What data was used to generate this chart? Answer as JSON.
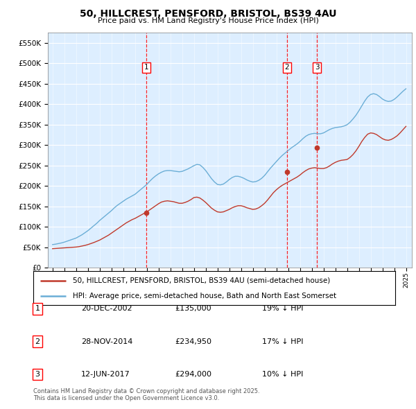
{
  "title": "50, HILLCREST, PENSFORD, BRISTOL, BS39 4AU",
  "subtitle": "Price paid vs. HM Land Registry's House Price Index (HPI)",
  "legend_line1": "50, HILLCREST, PENSFORD, BRISTOL, BS39 4AU (semi-detached house)",
  "legend_line2": "HPI: Average price, semi-detached house, Bath and North East Somerset",
  "footer": "Contains HM Land Registry data © Crown copyright and database right 2025.\nThis data is licensed under the Open Government Licence v3.0.",
  "sale_dates": [
    "20-DEC-2002",
    "28-NOV-2014",
    "12-JUN-2017"
  ],
  "sale_prices": [
    135000,
    234950,
    294000
  ],
  "sale_labels": [
    "1",
    "2",
    "3"
  ],
  "sale_hpi_pct": [
    "19% ↓ HPI",
    "17% ↓ HPI",
    "10% ↓ HPI"
  ],
  "hpi_color": "#6baed6",
  "price_color": "#c0392b",
  "background_color": "#ddeeff",
  "ylim": [
    0,
    575000
  ],
  "yticks": [
    0,
    50000,
    100000,
    150000,
    200000,
    250000,
    300000,
    350000,
    400000,
    450000,
    500000,
    550000
  ],
  "xlim_start": 1994.6,
  "xlim_end": 2025.5,
  "hpi_x": [
    1995.0,
    1995.25,
    1995.5,
    1995.75,
    1996.0,
    1996.25,
    1996.5,
    1996.75,
    1997.0,
    1997.25,
    1997.5,
    1997.75,
    1998.0,
    1998.25,
    1998.5,
    1998.75,
    1999.0,
    1999.25,
    1999.5,
    1999.75,
    2000.0,
    2000.25,
    2000.5,
    2000.75,
    2001.0,
    2001.25,
    2001.5,
    2001.75,
    2002.0,
    2002.25,
    2002.5,
    2002.75,
    2003.0,
    2003.25,
    2003.5,
    2003.75,
    2004.0,
    2004.25,
    2004.5,
    2004.75,
    2005.0,
    2005.25,
    2005.5,
    2005.75,
    2006.0,
    2006.25,
    2006.5,
    2006.75,
    2007.0,
    2007.25,
    2007.5,
    2007.75,
    2008.0,
    2008.25,
    2008.5,
    2008.75,
    2009.0,
    2009.25,
    2009.5,
    2009.75,
    2010.0,
    2010.25,
    2010.5,
    2010.75,
    2011.0,
    2011.25,
    2011.5,
    2011.75,
    2012.0,
    2012.25,
    2012.5,
    2012.75,
    2013.0,
    2013.25,
    2013.5,
    2013.75,
    2014.0,
    2014.25,
    2014.5,
    2014.75,
    2015.0,
    2015.25,
    2015.5,
    2015.75,
    2016.0,
    2016.25,
    2016.5,
    2016.75,
    2017.0,
    2017.25,
    2017.5,
    2017.75,
    2018.0,
    2018.25,
    2018.5,
    2018.75,
    2019.0,
    2019.25,
    2019.5,
    2019.75,
    2020.0,
    2020.25,
    2020.5,
    2020.75,
    2021.0,
    2021.25,
    2021.5,
    2021.75,
    2022.0,
    2022.25,
    2022.5,
    2022.75,
    2023.0,
    2023.25,
    2023.5,
    2023.75,
    2024.0,
    2024.25,
    2024.5,
    2024.75,
    2025.0
  ],
  "hpi_y": [
    57000,
    58000,
    59500,
    61000,
    63000,
    65500,
    68000,
    70500,
    73000,
    77000,
    81000,
    86000,
    91000,
    97000,
    103000,
    109000,
    116000,
    122000,
    128000,
    134000,
    140000,
    147000,
    153000,
    158000,
    163000,
    168000,
    172000,
    176000,
    180000,
    186000,
    192000,
    198000,
    204000,
    212000,
    219000,
    225000,
    230000,
    234000,
    237000,
    238000,
    238000,
    237000,
    236000,
    235000,
    236000,
    239000,
    242000,
    246000,
    250000,
    253000,
    252000,
    246000,
    238000,
    228000,
    218000,
    210000,
    204000,
    203000,
    205000,
    210000,
    216000,
    221000,
    224000,
    224000,
    222000,
    219000,
    215000,
    212000,
    210000,
    211000,
    214000,
    219000,
    226000,
    235000,
    244000,
    252000,
    260000,
    268000,
    275000,
    281000,
    287000,
    293000,
    298000,
    303000,
    309000,
    316000,
    322000,
    326000,
    328000,
    329000,
    328000,
    328000,
    330000,
    334000,
    338000,
    341000,
    343000,
    344000,
    345000,
    347000,
    350000,
    356000,
    364000,
    373000,
    384000,
    396000,
    408000,
    418000,
    424000,
    426000,
    424000,
    419000,
    413000,
    409000,
    407000,
    408000,
    412000,
    418000,
    425000,
    432000,
    438000
  ],
  "price_x": [
    1995.0,
    1995.25,
    1995.5,
    1995.75,
    1996.0,
    1996.25,
    1996.5,
    1996.75,
    1997.0,
    1997.25,
    1997.5,
    1997.75,
    1998.0,
    1998.25,
    1998.5,
    1998.75,
    1999.0,
    1999.25,
    1999.5,
    1999.75,
    2000.0,
    2000.25,
    2000.5,
    2000.75,
    2001.0,
    2001.25,
    2001.5,
    2001.75,
    2002.0,
    2002.25,
    2002.5,
    2002.75,
    2003.0,
    2003.25,
    2003.5,
    2003.75,
    2004.0,
    2004.25,
    2004.5,
    2004.75,
    2005.0,
    2005.25,
    2005.5,
    2005.75,
    2006.0,
    2006.25,
    2006.5,
    2006.75,
    2007.0,
    2007.25,
    2007.5,
    2007.75,
    2008.0,
    2008.25,
    2008.5,
    2008.75,
    2009.0,
    2009.25,
    2009.5,
    2009.75,
    2010.0,
    2010.25,
    2010.5,
    2010.75,
    2011.0,
    2011.25,
    2011.5,
    2011.75,
    2012.0,
    2012.25,
    2012.5,
    2012.75,
    2013.0,
    2013.25,
    2013.5,
    2013.75,
    2014.0,
    2014.25,
    2014.5,
    2014.75,
    2015.0,
    2015.25,
    2015.5,
    2015.75,
    2016.0,
    2016.25,
    2016.5,
    2016.75,
    2017.0,
    2017.25,
    2017.5,
    2017.75,
    2018.0,
    2018.25,
    2018.5,
    2018.75,
    2019.0,
    2019.25,
    2019.5,
    2019.75,
    2020.0,
    2020.25,
    2020.5,
    2020.75,
    2021.0,
    2021.25,
    2021.5,
    2021.75,
    2022.0,
    2022.25,
    2022.5,
    2022.75,
    2023.0,
    2023.25,
    2023.5,
    2023.75,
    2024.0,
    2024.25,
    2024.5,
    2024.75,
    2025.0
  ],
  "price_y": [
    47000,
    47500,
    48000,
    48500,
    49000,
    49500,
    50000,
    50500,
    51000,
    52000,
    53500,
    55000,
    57000,
    59500,
    62000,
    65000,
    68000,
    72000,
    76000,
    80000,
    85000,
    90000,
    95000,
    100000,
    105000,
    110000,
    114000,
    118000,
    121000,
    125000,
    129000,
    133000,
    137000,
    142000,
    147000,
    152000,
    157000,
    161000,
    163000,
    164000,
    163000,
    162000,
    160000,
    158000,
    158000,
    160000,
    163000,
    167000,
    172000,
    173000,
    171000,
    166000,
    160000,
    153000,
    146000,
    141000,
    137000,
    136000,
    137000,
    140000,
    143000,
    147000,
    150000,
    152000,
    152000,
    150000,
    147000,
    145000,
    143000,
    144000,
    147000,
    152000,
    158000,
    166000,
    175000,
    184000,
    191000,
    197000,
    202000,
    206000,
    210000,
    214000,
    218000,
    222000,
    227000,
    233000,
    238000,
    242000,
    244000,
    245000,
    244000,
    243000,
    243000,
    245000,
    249000,
    254000,
    258000,
    261000,
    263000,
    264000,
    265000,
    270000,
    277000,
    286000,
    297000,
    309000,
    319000,
    327000,
    330000,
    329000,
    326000,
    321000,
    316000,
    313000,
    312000,
    314000,
    318000,
    323000,
    330000,
    338000,
    346000
  ]
}
